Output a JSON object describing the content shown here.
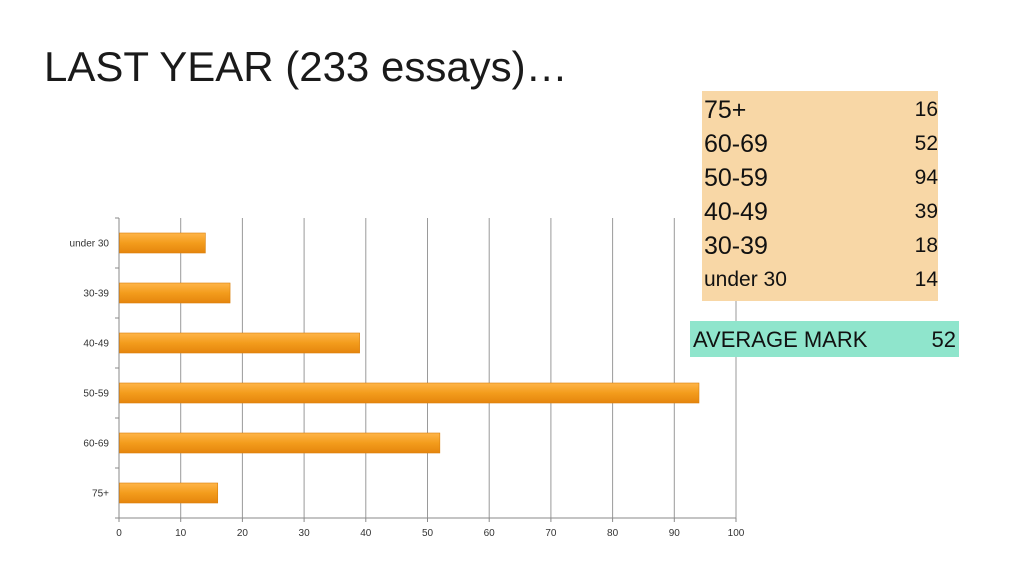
{
  "title": "LAST YEAR (233 essays)…",
  "summary": {
    "background": "#f8d7a6",
    "rows": [
      {
        "band": "75+",
        "count": "16"
      },
      {
        "band": "60-69",
        "count": "52"
      },
      {
        "band": "50-59",
        "count": "94"
      },
      {
        "band": "40-49",
        "count": "39"
      },
      {
        "band": "30-39",
        "count": "18"
      },
      {
        "band": "under 30",
        "count": "14"
      }
    ]
  },
  "average": {
    "label": "AVERAGE MARK",
    "value": "52",
    "background": "#8fe5cc"
  },
  "chart_data": {
    "type": "bar",
    "orientation": "horizontal",
    "categories": [
      "under 30",
      "30-39",
      "40-49",
      "50-59",
      "60-69",
      "75+"
    ],
    "values": [
      14,
      18,
      39,
      94,
      52,
      16
    ],
    "xlim": [
      0,
      100
    ],
    "x_ticks": [
      0,
      10,
      20,
      30,
      40,
      50,
      60,
      70,
      80,
      90,
      100
    ],
    "grid": true,
    "legend": "none",
    "bar_color": "#f39c1c",
    "bar_edge_color": "#d97f0a"
  }
}
